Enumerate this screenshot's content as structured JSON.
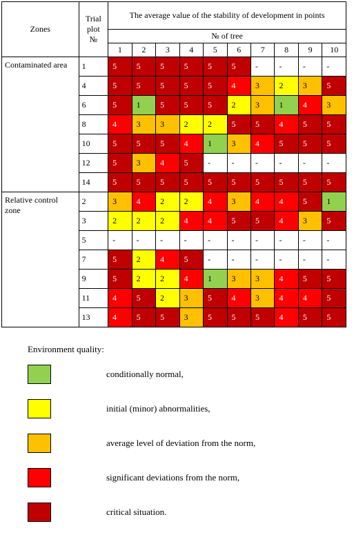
{
  "headers": {
    "zones": "Zones",
    "trial_plot": "Trial plot",
    "plot_no": "№",
    "avg_title": "The average value of the stability of development in points",
    "tree_no": "№ of tree",
    "tree_cols": [
      "1",
      "2",
      "3",
      "4",
      "5",
      "6",
      "7",
      "8",
      "9",
      "10"
    ]
  },
  "colors": {
    "1": "#92d050",
    "2": "#ffff00",
    "3": "#ffc000",
    "4": "#ff0000",
    "5": "#c00000"
  },
  "zones": [
    {
      "label": "Contaminated area",
      "rows": [
        {
          "plot": "1",
          "vals": [
            "5",
            "5",
            "5",
            "5",
            "5",
            "5",
            "-",
            "-",
            "-",
            "-"
          ]
        },
        {
          "plot": "4",
          "vals": [
            "5",
            "5",
            "5",
            "5",
            "5",
            "4",
            "3",
            "2",
            "3",
            "5"
          ]
        },
        {
          "plot": "6",
          "vals": [
            "5",
            "1",
            "5",
            "5",
            "5",
            "2",
            "3",
            "1",
            "4",
            "3"
          ]
        },
        {
          "plot": "8",
          "vals": [
            "4",
            "3",
            "3",
            "2",
            "2",
            "5",
            "5",
            "4",
            "5",
            "5"
          ]
        },
        {
          "plot": "10",
          "vals": [
            "5",
            "5",
            "5",
            "4",
            "1",
            "3",
            "4",
            "5",
            "5",
            "5"
          ]
        },
        {
          "plot": "12",
          "vals": [
            "5",
            "3",
            "4",
            "5",
            "-",
            "-",
            "-",
            "-",
            "-",
            "-"
          ]
        },
        {
          "plot": "14",
          "vals": [
            "5",
            "5",
            "5",
            "5",
            "5",
            "5",
            "5",
            "5",
            "5",
            "5"
          ]
        }
      ]
    },
    {
      "label": "Relative control zone",
      "rows": [
        {
          "plot": "2",
          "vals": [
            "3",
            "4",
            "2",
            "2",
            "4",
            "3",
            "4",
            "4",
            "5",
            "1"
          ]
        },
        {
          "plot": "3",
          "vals": [
            "2",
            "2",
            "2",
            "4",
            "4",
            "5",
            "5",
            "4",
            "3",
            "5"
          ]
        },
        {
          "plot": "5",
          "vals": [
            "-",
            "-",
            "-",
            "-",
            "-",
            "-",
            "-",
            "-",
            "-",
            "-"
          ]
        },
        {
          "plot": "7",
          "vals": [
            "5",
            "2",
            "4",
            "5",
            "-",
            "-",
            "-",
            "-",
            "-",
            "-"
          ]
        },
        {
          "plot": "9",
          "vals": [
            "5",
            "2",
            "2",
            "4",
            "1",
            "3",
            "3",
            "4",
            "5",
            "5"
          ]
        },
        {
          "plot": "11",
          "vals": [
            "4",
            "5",
            "2",
            "3",
            "5",
            "4",
            "3",
            "4",
            "4",
            "5"
          ]
        },
        {
          "plot": "13",
          "vals": [
            "4",
            "5",
            "5",
            "3",
            "5",
            "5",
            "5",
            "4",
            "5",
            "5"
          ]
        }
      ]
    }
  ],
  "legend": {
    "title": "Environment quality:",
    "items": [
      {
        "color_key": "1",
        "label": "conditionally normal,"
      },
      {
        "color_key": "2",
        "label": "initial (minor) abnormalities,"
      },
      {
        "color_key": "3",
        "label": "average level of deviation from the norm,"
      },
      {
        "color_key": "4",
        "label": "significant deviations from the norm,"
      },
      {
        "color_key": "5",
        "label": "critical situation."
      }
    ]
  }
}
